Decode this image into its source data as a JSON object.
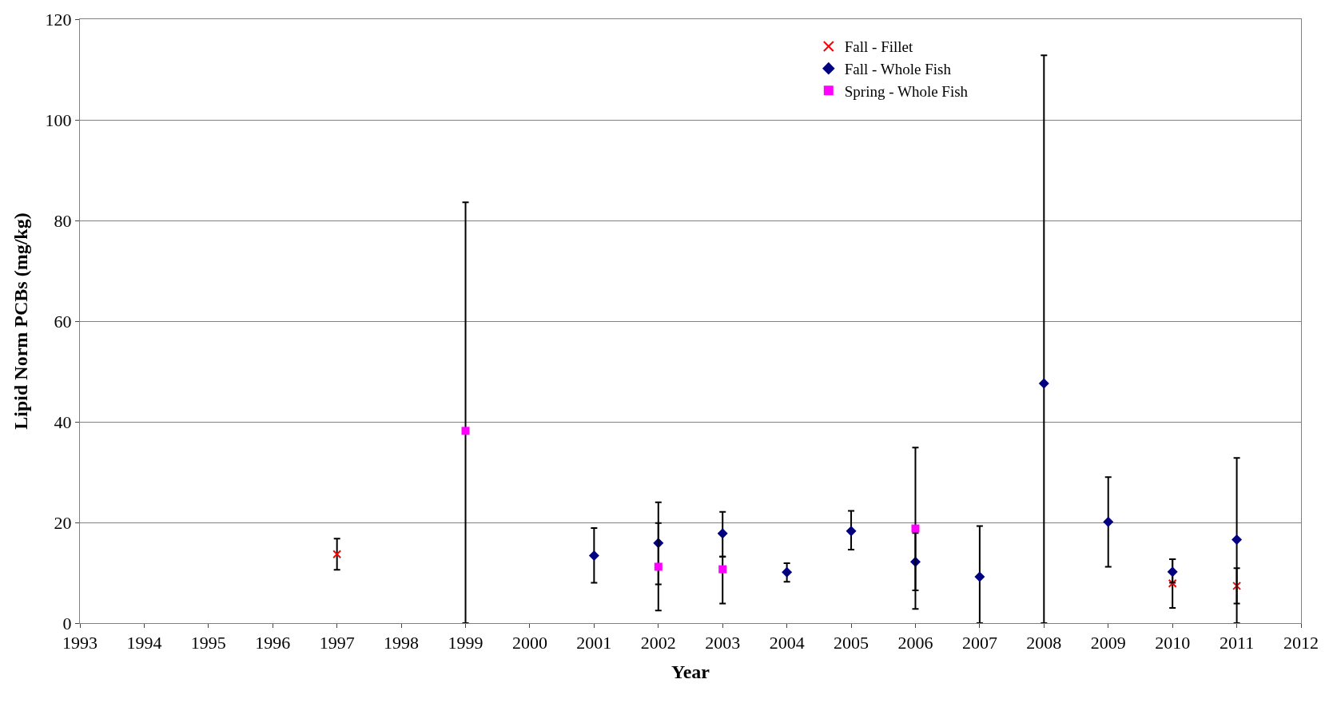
{
  "chart_data": {
    "type": "scatter",
    "xlabel": "Year",
    "ylabel": "Lipid Norm PCBs (mg/kg)",
    "xlim": [
      1993,
      2012
    ],
    "xticks": [
      1993,
      1994,
      1995,
      1996,
      1997,
      1998,
      1999,
      2000,
      2001,
      2002,
      2003,
      2004,
      2005,
      2006,
      2007,
      2008,
      2009,
      2010,
      2011,
      2012
    ],
    "ylim": [
      0,
      120
    ],
    "yticks": [
      0,
      20,
      40,
      60,
      80,
      100,
      120
    ],
    "grid": "y",
    "legend": "top right",
    "series": [
      {
        "name": "Fall - Fillet",
        "color": "#ff0000",
        "marker": "cross",
        "x": [
          1997,
          2010,
          2011
        ],
        "values": [
          13.7,
          7.9,
          7.4
        ],
        "errors": [
          [
            10.6,
            16.8
          ],
          [
            3.0,
            12.7
          ],
          [
            3.9,
            10.9
          ]
        ]
      },
      {
        "name": "Fall - Whole Fish",
        "color": "#000080",
        "marker": "diamond",
        "x": [
          2001,
          2002,
          2003,
          2004,
          2005,
          2006,
          2007,
          2008,
          2009,
          2010,
          2011
        ],
        "values": [
          13.4,
          15.9,
          17.8,
          10.1,
          18.3,
          12.2,
          9.2,
          47.6,
          20.1,
          10.2,
          16.6
        ],
        "errors": [
          [
            8.0,
            18.9
          ],
          [
            7.7,
            24.0
          ],
          [
            13.2,
            22.1
          ],
          [
            8.2,
            11.9
          ],
          [
            14.6,
            22.3
          ],
          [
            6.5,
            17.9
          ],
          [
            0,
            19.3
          ],
          [
            0,
            112.8
          ],
          [
            11.2,
            29.0
          ],
          [
            8.0,
            12.7
          ],
          [
            0,
            32.8
          ]
        ]
      },
      {
        "name": "Spring - Whole Fish",
        "color": "#ff00ff",
        "marker": "square",
        "x": [
          1999,
          2002,
          2003,
          2006
        ],
        "values": [
          38.2,
          11.2,
          10.7,
          18.8
        ],
        "errors": [
          [
            0,
            83.6
          ],
          [
            2.5,
            19.9
          ],
          [
            3.9,
            13.2
          ],
          [
            2.8,
            34.9
          ]
        ]
      }
    ]
  }
}
